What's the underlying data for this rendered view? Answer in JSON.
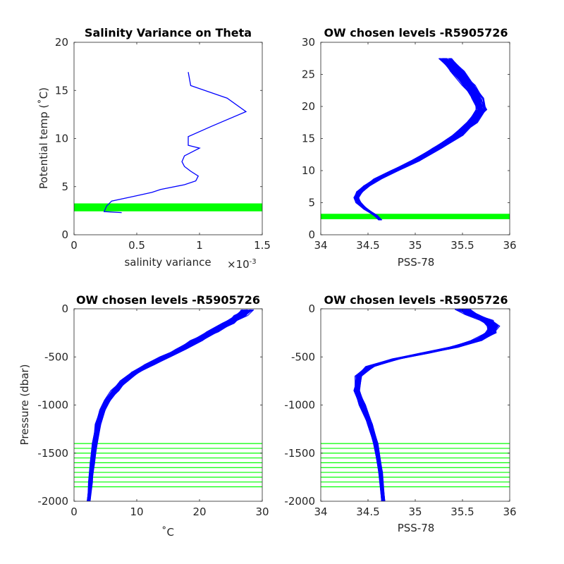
{
  "chart_data": [
    {
      "type": "line",
      "title": "Salinity Variance on Theta",
      "xlabel": "salinity variance",
      "x_exponent_label": "×10",
      "x_exponent_power": "-3",
      "ylabel": "Potential temp (˚C)",
      "xlim": [
        0,
        1.5
      ],
      "ylim": [
        0,
        20
      ],
      "x_ticks": [
        0,
        0.5,
        1,
        1.5
      ],
      "y_ticks": [
        0,
        5,
        10,
        15,
        20
      ],
      "x_tick_labels": [
        "0",
        "0.5",
        "1",
        "1.5"
      ],
      "y_tick_labels": [
        "0",
        "5",
        "10",
        "15",
        "20"
      ],
      "series": [
        {
          "color": "#0000ff",
          "points": [
            [
              0.38,
              2.3
            ],
            [
              0.24,
              2.4
            ],
            [
              0.26,
              3.0
            ],
            [
              0.3,
              3.5
            ],
            [
              0.48,
              4.0
            ],
            [
              0.62,
              4.4
            ],
            [
              0.69,
              4.7
            ],
            [
              0.88,
              5.2
            ],
            [
              0.97,
              5.6
            ],
            [
              0.99,
              6.1
            ],
            [
              0.93,
              6.6
            ],
            [
              0.88,
              7.1
            ],
            [
              0.86,
              7.6
            ],
            [
              0.88,
              8.2
            ],
            [
              1.0,
              9.0
            ],
            [
              0.91,
              9.3
            ],
            [
              0.91,
              10.2
            ],
            [
              1.1,
              11.3
            ],
            [
              1.37,
              12.8
            ],
            [
              1.22,
              14.2
            ],
            [
              0.93,
              15.5
            ],
            [
              0.91,
              16.9
            ]
          ]
        }
      ],
      "levels": [
        2.55,
        2.65,
        2.75,
        2.85,
        2.95,
        3.05,
        3.15
      ],
      "levels_color": "#00ff00"
    },
    {
      "type": "line",
      "title": "OW chosen levels -R5905726",
      "xlabel": "PSS-78",
      "ylabel": "",
      "xlim": [
        34,
        36
      ],
      "ylim": [
        0,
        30
      ],
      "x_ticks": [
        34,
        34.5,
        35,
        35.5,
        36
      ],
      "y_ticks": [
        0,
        5,
        10,
        15,
        20,
        25,
        30
      ],
      "x_tick_labels": [
        "34",
        "34.5",
        "35",
        "35.5",
        "36"
      ],
      "y_tick_labels": [
        "0",
        "5",
        "10",
        "15",
        "20",
        "25",
        "30"
      ],
      "profile": [
        [
          34.63,
          2.3
        ],
        [
          34.58,
          3.0
        ],
        [
          34.48,
          4.0
        ],
        [
          34.4,
          5.0
        ],
        [
          34.38,
          5.8
        ],
        [
          34.41,
          6.7
        ],
        [
          34.48,
          7.6
        ],
        [
          34.6,
          8.7
        ],
        [
          34.78,
          10.0
        ],
        [
          35.0,
          11.5
        ],
        [
          35.23,
          13.5
        ],
        [
          35.45,
          15.5
        ],
        [
          35.6,
          17.5
        ],
        [
          35.7,
          19.5
        ],
        [
          35.66,
          21.3
        ],
        [
          35.57,
          23.3
        ],
        [
          35.45,
          25.5
        ],
        [
          35.32,
          27.5
        ]
      ],
      "profile_color": "#0000ff",
      "profile_count": 60,
      "levels": [
        2.6,
        2.7,
        2.8,
        2.9,
        3.0,
        3.1
      ],
      "levels_color": "#00ff00"
    },
    {
      "type": "line",
      "title": "OW chosen levels -R5905726",
      "xlabel": "˚C",
      "ylabel": "Pressure (dbar)",
      "xlim": [
        0,
        30
      ],
      "ylim": [
        -2000,
        0
      ],
      "x_ticks": [
        0,
        10,
        20,
        30
      ],
      "y_ticks": [
        -2000,
        -1500,
        -1000,
        -500,
        0
      ],
      "x_tick_labels": [
        "0",
        "10",
        "20",
        "30"
      ],
      "y_tick_labels": [
        "-2000",
        "-1500",
        "-1000",
        "-500",
        "0"
      ],
      "profile": [
        [
          2.3,
          -2000
        ],
        [
          2.6,
          -1800
        ],
        [
          2.9,
          -1600
        ],
        [
          3.3,
          -1400
        ],
        [
          3.8,
          -1200
        ],
        [
          4.5,
          -1050
        ],
        [
          5.3,
          -950
        ],
        [
          6.5,
          -850
        ],
        [
          8.0,
          -750
        ],
        [
          9.8,
          -660
        ],
        [
          12.0,
          -580
        ],
        [
          14.5,
          -500
        ],
        [
          17.0,
          -420
        ],
        [
          19.5,
          -330
        ],
        [
          22.0,
          -240
        ],
        [
          24.5,
          -150
        ],
        [
          26.5,
          -70
        ],
        [
          27.5,
          -10
        ]
      ],
      "profile_color": "#0000ff",
      "profile_count": 60,
      "levels": [
        -1400,
        -1450,
        -1500,
        -1550,
        -1600,
        -1650,
        -1700,
        -1750,
        -1800,
        -1850
      ],
      "levels_color": "#00ff00"
    },
    {
      "type": "line",
      "title": "OW chosen levels -R5905726",
      "xlabel": "PSS-78",
      "ylabel": "",
      "xlim": [
        34,
        36
      ],
      "ylim": [
        -2000,
        0
      ],
      "x_ticks": [
        34,
        34.5,
        35,
        35.5,
        36
      ],
      "y_ticks": [
        -2000,
        -1500,
        -1000,
        -500,
        0
      ],
      "x_tick_labels": [
        "34",
        "34.5",
        "35",
        "35.5",
        "36"
      ],
      "y_tick_labels": [
        "-2000",
        "-1500",
        "-1000",
        "-500",
        "0"
      ],
      "profile": [
        [
          34.66,
          -2000
        ],
        [
          34.63,
          -1700
        ],
        [
          34.58,
          -1400
        ],
        [
          34.52,
          -1200
        ],
        [
          34.44,
          -1000
        ],
        [
          34.38,
          -850
        ],
        [
          34.4,
          -700
        ],
        [
          34.52,
          -600
        ],
        [
          34.8,
          -520
        ],
        [
          35.1,
          -460
        ],
        [
          35.4,
          -400
        ],
        [
          35.65,
          -330
        ],
        [
          35.8,
          -250
        ],
        [
          35.82,
          -180
        ],
        [
          35.75,
          -120
        ],
        [
          35.6,
          -60
        ],
        [
          35.5,
          -5
        ]
      ],
      "profile_color": "#0000ff",
      "profile_count": 60,
      "levels": [
        -1400,
        -1450,
        -1500,
        -1550,
        -1600,
        -1650,
        -1700,
        -1750,
        -1800,
        -1850
      ],
      "levels_color": "#00ff00"
    }
  ]
}
